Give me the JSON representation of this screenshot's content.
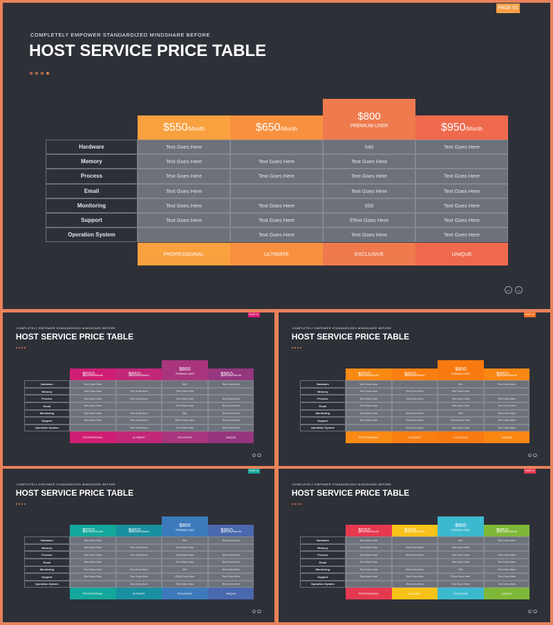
{
  "subtitle": "COMPLETELY EMPOWER STANDARDIZED MINDSHARE BEFORE",
  "title": "HOST SERVICE PRICE TABLE",
  "page_badge": "PAGE 01",
  "rows": [
    "Hardware",
    "Memory",
    "Process",
    "Email",
    "Monitoring",
    "Support",
    "Operation System"
  ],
  "plans": [
    {
      "price": "$550",
      "per": "/Month",
      "footer": "PROFESSIONAL",
      "cells": [
        "Text Goes Here",
        "Text Goes Here",
        "Text Goes Here",
        "Text Goes Here",
        "Text Goes Here",
        "Text Goes Here",
        ""
      ]
    },
    {
      "price": "$650",
      "per": "/Month",
      "footer": "ULTIMATE",
      "cells": [
        "",
        "Text Goes Here",
        "Text Goes Here",
        "",
        "Text Goes Here",
        "Text Goes Here",
        "Text Goes Here"
      ]
    },
    {
      "price": "$800",
      "per": "PREMIUM USER",
      "footer": "EXCLUSIVE",
      "featured": true,
      "cells": [
        "540",
        "Text Goes Here",
        "Text Goes Here",
        "Text Goes Here",
        "550",
        "8Text Goes Here",
        "Text Goes Here"
      ]
    },
    {
      "price": "$950",
      "per": "/Month",
      "footer": "UNIQUE",
      "cells": [
        "Text Goes Here",
        "",
        "Text Goes Here",
        "Text Goes Here",
        "Text Goes Here",
        "Text Goes Here",
        "Text Goes Here"
      ]
    }
  ],
  "nav": {
    "prev": "←",
    "next": "→"
  },
  "variants": [
    {
      "badge_color": "#f5a04a",
      "colors": [
        "#f9a03f",
        "#f8913f",
        "#ee7a4e",
        "#ef6a4c"
      ]
    },
    {
      "badge_color": "#d81b72",
      "colors": [
        "#cf1f74",
        "#c12877",
        "#a8357e",
        "#96367e"
      ]
    },
    {
      "badge_color": "#f36f21",
      "colors": [
        "#f98a14",
        "#f97f12",
        "#f97a10",
        "#f98714"
      ]
    },
    {
      "badge_color": "#17a89b",
      "colors": [
        "#14a79b",
        "#1a8fa0",
        "#3c7bbb",
        "#4a68ae"
      ]
    },
    {
      "badge_color": "#e63950",
      "colors": [
        "#e53950",
        "#f7c21a",
        "#3db9cf",
        "#7fb838"
      ]
    }
  ]
}
